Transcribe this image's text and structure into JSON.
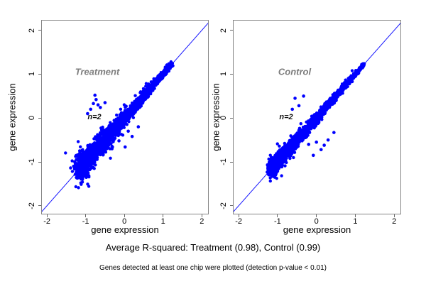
{
  "figure": {
    "caption": "Average R-squared: Treatment (0.98), Control (0.99)",
    "footnote": "Genes detected at least one chip were plotted (detection p-value < 0.01)"
  },
  "colors": {
    "point": "#0000ff",
    "identity_line": "#1515ff",
    "frame": "#858585",
    "panel_title": "#7d7d7d",
    "text": "#000000"
  },
  "chart_data": [
    {
      "type": "scatter",
      "panel": "treatment",
      "title": "Treatment",
      "annotation": "n=2",
      "xlabel": "gene expression",
      "ylabel": "gene expression",
      "xticks": [
        -2,
        -1,
        0,
        1,
        2
      ],
      "yticks": [
        -2,
        -1,
        0,
        1,
        2
      ],
      "xlim": [
        -2.13,
        2.16
      ],
      "ylim": [
        -2.18,
        2.22
      ],
      "identity_line": true,
      "r_squared": 0.98,
      "points": {
        "n": 2300,
        "t_min": -1.15,
        "t_max": 1.22,
        "density_skew": 1.9,
        "noise_sd": 0.13,
        "seed": 42
      },
      "outliers": [
        [
          -0.76,
          0.52
        ],
        [
          -0.73,
          0.42
        ],
        [
          -0.8,
          0.33
        ],
        [
          -0.68,
          0.3
        ],
        [
          -0.62,
          0.24
        ],
        [
          -0.87,
          0.2
        ],
        [
          -0.5,
          0.35
        ],
        [
          0.02,
          -0.66
        ],
        [
          -0.14,
          -0.52
        ],
        [
          0.2,
          -0.42
        ],
        [
          0.36,
          -0.2
        ],
        [
          -0.32,
          -0.7
        ],
        [
          0.1,
          -0.3
        ],
        [
          -0.95,
          0.1
        ]
      ]
    },
    {
      "type": "scatter",
      "panel": "control",
      "title": "Control",
      "annotation": "n=2",
      "xlabel": "gene expression",
      "ylabel": "gene expression",
      "xticks": [
        -2,
        -1,
        0,
        1,
        2
      ],
      "yticks": [
        -2,
        -1,
        0,
        1,
        2
      ],
      "xlim": [
        -2.13,
        2.16
      ],
      "ylim": [
        -2.18,
        2.22
      ],
      "identity_line": true,
      "r_squared": 0.99,
      "points": {
        "n": 2100,
        "t_min": -1.15,
        "t_max": 1.22,
        "density_skew": 1.9,
        "noise_sd": 0.09,
        "seed": 7
      },
      "outliers": [
        [
          -0.55,
          0.45
        ],
        [
          -0.33,
          0.5
        ],
        [
          -0.45,
          0.28
        ],
        [
          0.0,
          -0.55
        ],
        [
          0.12,
          -0.72
        ],
        [
          -0.08,
          -0.85
        ],
        [
          0.3,
          -0.5
        ],
        [
          0.45,
          -0.33
        ],
        [
          0.2,
          -0.62
        ],
        [
          -0.2,
          -0.6
        ],
        [
          -0.62,
          0.2
        ]
      ]
    }
  ]
}
